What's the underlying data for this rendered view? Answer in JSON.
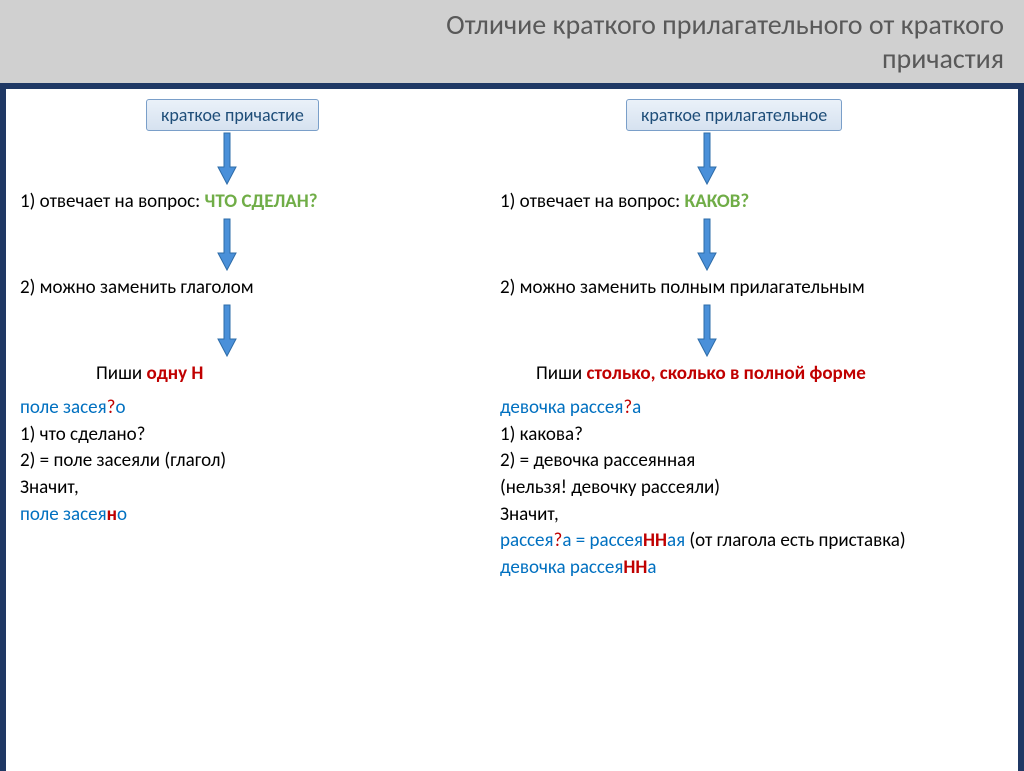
{
  "header": {
    "line1": "Отличие краткого прилагательного от краткого",
    "line2": "причастия"
  },
  "arrow": {
    "color": "#4a90d9",
    "stroke": "#2e6ca8",
    "width": 22,
    "height": 55
  },
  "columns": {
    "left": {
      "box": "краткое причастие",
      "step1_prefix": "1) отвечает на вопрос: ",
      "step1_q": "ЧТО СДЕЛАН?",
      "step2": "2) можно заменить глаголом",
      "rule_prefix": "Пиши ",
      "rule_hl": "одну Н",
      "ex_title_pre": "поле засея",
      "ex_title_q": "?",
      "ex_title_post": "о",
      "ex1": "1)   что сделано?",
      "ex2_pre": "2)   = поле засеяли ",
      "ex2_par": "(глагол)",
      "ex3": "Значит,",
      "ex4_pre": "поле засея",
      "ex4_hl": "н",
      "ex4_post": "о"
    },
    "right": {
      "box": "краткое прилагательное",
      "step1_prefix": "1) отвечает на вопрос: ",
      "step1_q": "КАКОВ?",
      "step2": "2) можно заменить полным прилагательным",
      "rule_prefix": "Пиши ",
      "rule_hl": "столько, сколько в полной форме",
      "ex_title_pre": "девочка рассея",
      "ex_title_q": "?",
      "ex_title_post": "а",
      "ex1": "1)   какова?",
      "ex2": "2)   = девочка рассеянная",
      "ex3": "(нельзя!  девочку рассеяли)",
      "ex4": "Значит,",
      "ex5_pre": "рассея",
      "ex5_q": "?",
      "ex5_mid": "а = рассея",
      "ex5_hl": "НН",
      "ex5_post": "ая ",
      "ex5_par": "(от глагола есть приставка)",
      "ex6_pre": "девочка рассея",
      "ex6_hl": "НН",
      "ex6_post": "а"
    }
  }
}
